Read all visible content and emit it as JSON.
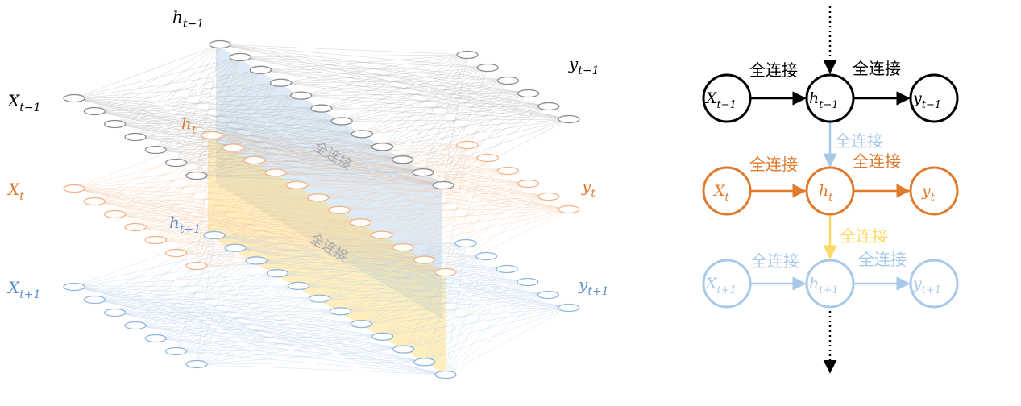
{
  "colors": {
    "black": "#000000",
    "orange": "#E07B2E",
    "light_orange": "#F4B183",
    "light_blue": "#A9C9E8",
    "blue": "#6E9FD3",
    "yellow": "#FFD966",
    "gray": "#999999"
  },
  "left_diagram": {
    "labels": {
      "h_prev": {
        "base": "h",
        "sub": "t−1"
      },
      "y_prev": {
        "base": "y",
        "sub": "t−1"
      },
      "x_prev": {
        "base": "X",
        "sub": "t−1"
      },
      "h_cur": {
        "base": "h",
        "sub": "t"
      },
      "x_cur": {
        "base": "X",
        "sub": "t"
      },
      "y_cur": {
        "base": "y",
        "sub": "t"
      },
      "h_next": {
        "base": "h",
        "sub": "t+1"
      },
      "x_next": {
        "base": "X",
        "sub": "t+1"
      },
      "y_next": {
        "base": "y",
        "sub": "t+1"
      }
    },
    "plane_labels": [
      "全连接",
      "全连接"
    ]
  },
  "right_diagram": {
    "rows": [
      {
        "color": "#000000",
        "x_node": {
          "base": "X",
          "sub": "t−1"
        },
        "h_node": {
          "base": "h",
          "sub": "t−1"
        },
        "y_node": {
          "base": "y",
          "sub": "t−1"
        },
        "edge_labels": [
          "全连接",
          "全连接"
        ]
      },
      {
        "color": "#E07B2E",
        "x_node": {
          "base": "X",
          "sub": "t"
        },
        "h_node": {
          "base": "h",
          "sub": "t"
        },
        "y_node": {
          "base": "y",
          "sub": "t"
        },
        "edge_labels": [
          "全连接",
          "全连接"
        ]
      },
      {
        "color": "#A9C9E8",
        "x_node": {
          "base": "X",
          "sub": "t+1"
        },
        "h_node": {
          "base": "h",
          "sub": "t+1"
        },
        "y_node": {
          "base": "y",
          "sub": "t+1"
        },
        "edge_labels": [
          "全连接",
          "全连接"
        ]
      }
    ],
    "vertical_edge_labels": [
      {
        "text": "全连接",
        "color": "#A9C9E8"
      },
      {
        "text": "全连接",
        "color": "#FFD966"
      }
    ]
  }
}
